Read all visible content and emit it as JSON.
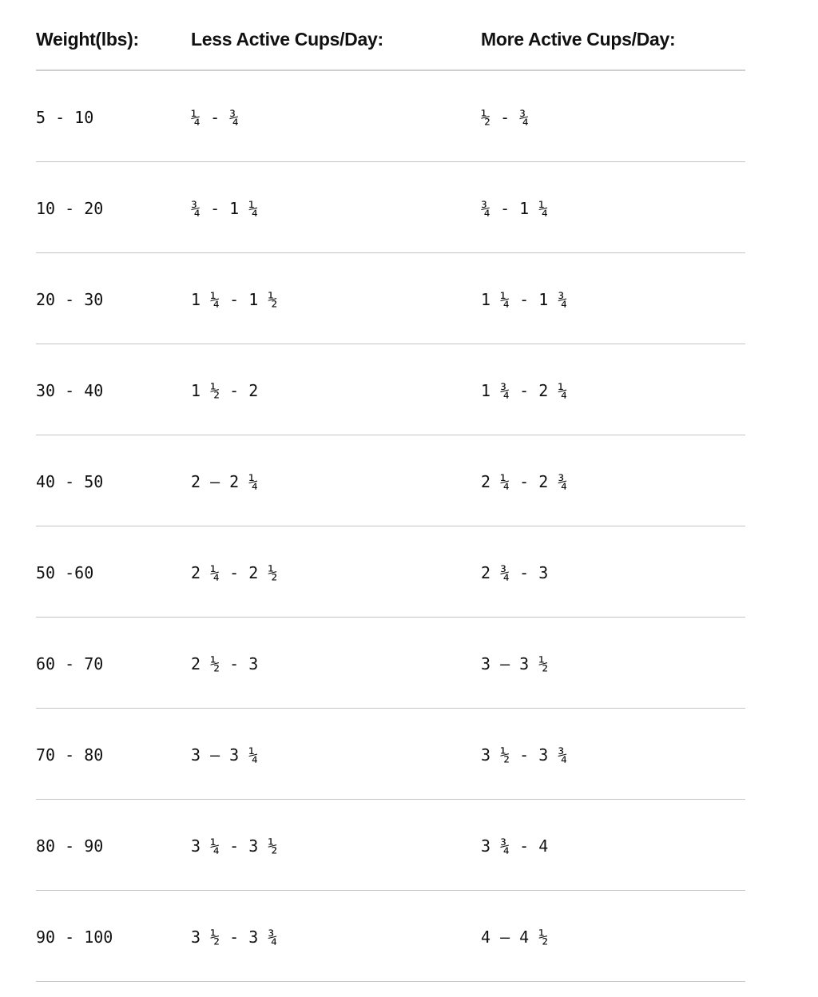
{
  "headers": [
    "Weight(lbs):",
    "Less Active Cups/Day:",
    "More Active Cups/Day:"
  ],
  "rows": [
    [
      "5 - 10",
      "¼ - ¾",
      "½ - ¾"
    ],
    [
      "10 - 20",
      "¾ - 1 ¼",
      "¾ - 1 ¼"
    ],
    [
      "20 - 30",
      "1 ¼ - 1 ½",
      "1 ¼ - 1 ¾"
    ],
    [
      "30 - 40",
      "1 ½ - 2",
      "1 ¾ - 2 ¼"
    ],
    [
      "40 - 50",
      "2 – 2 ¼",
      "2 ¼ - 2 ¾"
    ],
    [
      "50 -60",
      "2 ¼ - 2 ½",
      "2 ¾ - 3"
    ],
    [
      "60 - 70",
      "2 ½ - 3",
      "3 – 3 ½"
    ],
    [
      "70 - 80",
      "3 – 3 ¼",
      "3 ½ - 3 ¾"
    ],
    [
      "80 - 90",
      "3 ¼ - 3 ½",
      "3 ¾ - 4"
    ],
    [
      "90 - 100",
      "3 ½ - 3 ¾",
      "4 – 4 ½"
    ]
  ]
}
